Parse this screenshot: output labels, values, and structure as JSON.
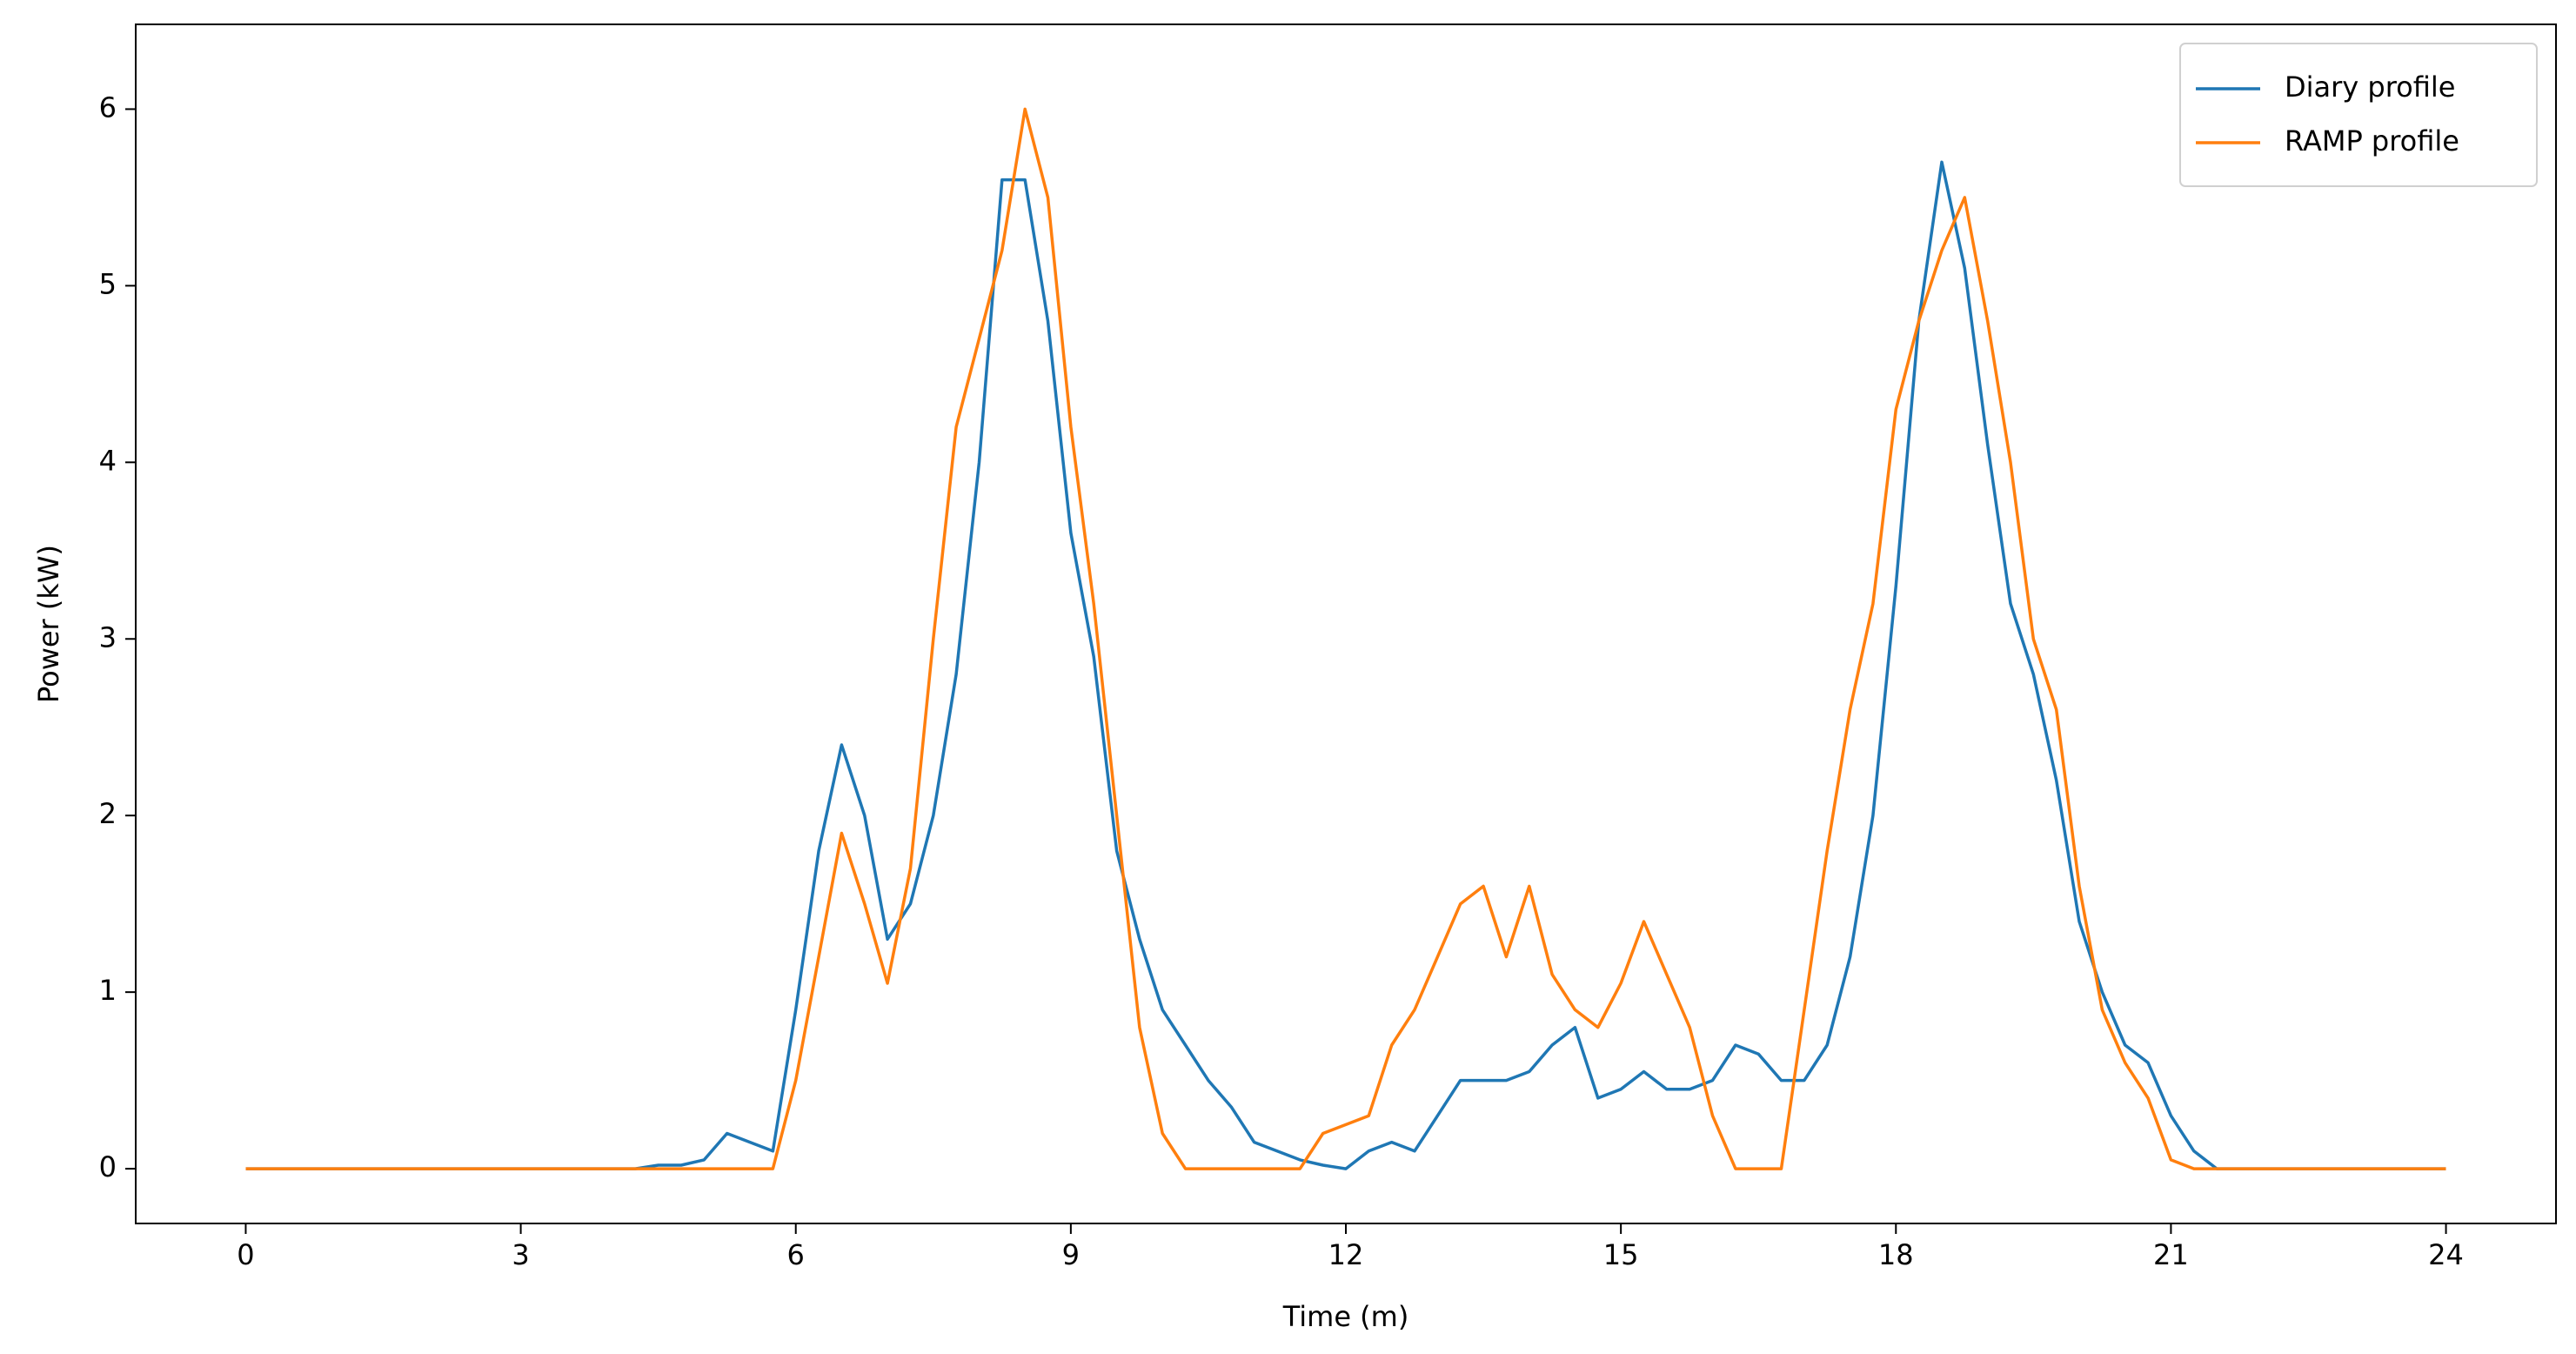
{
  "chart_data": {
    "type": "line",
    "xlabel": "Time (m)",
    "ylabel": "Power (kW)",
    "x": [
      0,
      0.25,
      0.5,
      0.75,
      1,
      1.25,
      1.5,
      1.75,
      2,
      2.25,
      2.5,
      2.75,
      3,
      3.25,
      3.5,
      3.75,
      4,
      4.25,
      4.5,
      4.75,
      5,
      5.25,
      5.5,
      5.75,
      6,
      6.25,
      6.5,
      6.75,
      7,
      7.25,
      7.5,
      7.75,
      8,
      8.25,
      8.5,
      8.75,
      9,
      9.25,
      9.5,
      9.75,
      10,
      10.25,
      10.5,
      10.75,
      11,
      11.25,
      11.5,
      11.75,
      12,
      12.25,
      12.5,
      12.75,
      13,
      13.25,
      13.5,
      13.75,
      14,
      14.25,
      14.5,
      14.75,
      15,
      15.25,
      15.5,
      15.75,
      16,
      16.25,
      16.5,
      16.75,
      17,
      17.25,
      17.5,
      17.75,
      18,
      18.25,
      18.5,
      18.75,
      19,
      19.25,
      19.5,
      19.75,
      20,
      20.25,
      20.5,
      20.75,
      21,
      21.25,
      21.5,
      21.75,
      22,
      22.25,
      22.5,
      22.75,
      23,
      23.25,
      23.5,
      23.75,
      24
    ],
    "series": [
      {
        "name": "Diary profile",
        "color": "#1f77b4",
        "values": [
          0,
          0,
          0,
          0,
          0,
          0,
          0,
          0,
          0,
          0,
          0,
          0,
          0,
          0,
          0,
          0,
          0,
          0,
          0.02,
          0.02,
          0.05,
          0.2,
          0.15,
          0.1,
          0.9,
          1.8,
          2.4,
          2.0,
          1.3,
          1.5,
          2.0,
          2.8,
          4.0,
          5.6,
          5.6,
          4.8,
          3.6,
          2.9,
          1.8,
          1.3,
          0.9,
          0.7,
          0.5,
          0.35,
          0.15,
          0.1,
          0.05,
          0.02,
          0,
          0.1,
          0.15,
          0.1,
          0.3,
          0.5,
          0.5,
          0.5,
          0.55,
          0.7,
          0.8,
          0.4,
          0.45,
          0.55,
          0.45,
          0.45,
          0.5,
          0.7,
          0.65,
          0.5,
          0.5,
          0.7,
          1.2,
          2.0,
          3.3,
          4.8,
          5.7,
          5.1,
          4.1,
          3.2,
          2.8,
          2.2,
          1.4,
          1.0,
          0.7,
          0.6,
          0.3,
          0.1,
          0,
          0,
          0,
          0,
          0,
          0,
          0,
          0,
          0,
          0,
          0
        ]
      },
      {
        "name": "RAMP profile",
        "color": "#ff7f0e",
        "values": [
          0,
          0,
          0,
          0,
          0,
          0,
          0,
          0,
          0,
          0,
          0,
          0,
          0,
          0,
          0,
          0,
          0,
          0,
          0,
          0,
          0,
          0,
          0,
          0,
          0.5,
          1.2,
          1.9,
          1.5,
          1.05,
          1.7,
          3.0,
          4.2,
          4.7,
          5.2,
          6.0,
          5.5,
          4.2,
          3.2,
          2.0,
          0.8,
          0.2,
          0,
          0,
          0,
          0,
          0,
          0,
          0.2,
          0.25,
          0.3,
          0.7,
          0.9,
          1.2,
          1.5,
          1.6,
          1.2,
          1.6,
          1.1,
          0.9,
          0.8,
          1.05,
          1.4,
          1.1,
          0.8,
          0.3,
          0,
          0,
          0,
          0.9,
          1.8,
          2.6,
          3.2,
          4.3,
          4.8,
          5.2,
          5.5,
          4.8,
          4.0,
          3.0,
          2.6,
          1.6,
          0.9,
          0.6,
          0.4,
          0.05,
          0,
          0,
          0,
          0,
          0,
          0,
          0,
          0,
          0,
          0,
          0,
          0
        ]
      }
    ],
    "xlim": [
      -1.2,
      25.2
    ],
    "ylim": [
      -0.31,
      6.48
    ],
    "xticks": [
      0,
      3,
      6,
      9,
      12,
      15,
      18,
      21,
      24
    ],
    "yticks": [
      0,
      1,
      2,
      3,
      4,
      5,
      6
    ],
    "legend": "upper right"
  }
}
